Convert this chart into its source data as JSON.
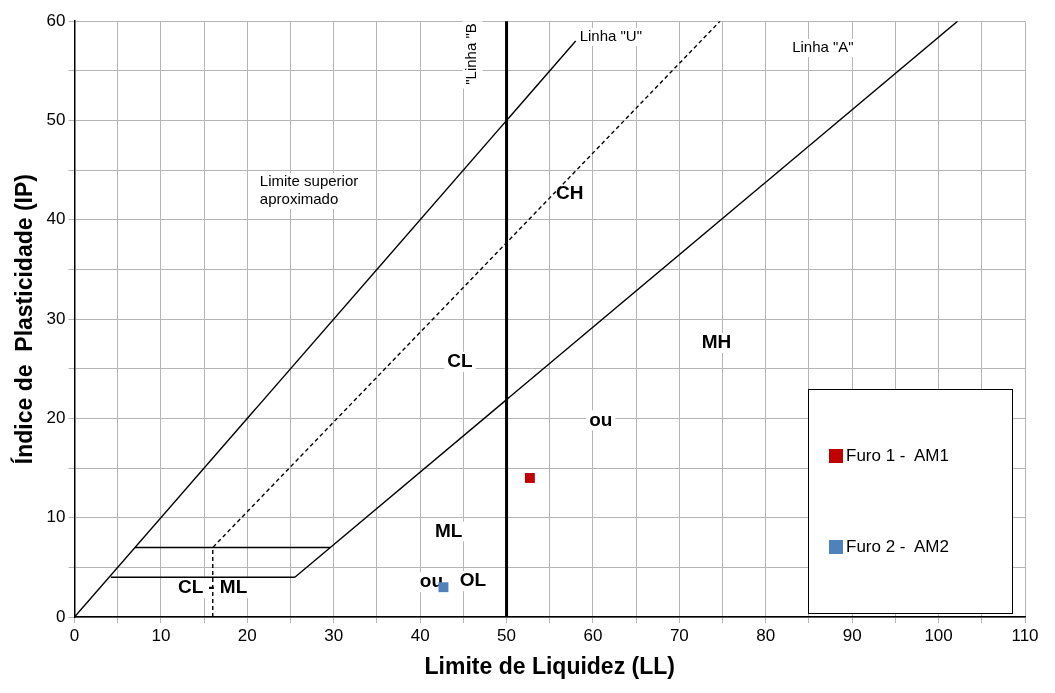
{
  "chart_data": {
    "type": "scatter",
    "xlabel": "Limite de Liquidez (LL)",
    "ylabel": "Índice de  Plasticidade (IP)",
    "xlim": [
      0,
      110
    ],
    "ylim": [
      0,
      60
    ],
    "xticks": [
      0,
      {
        "value": 5,
        "label": null
      },
      10,
      {
        "value": 15,
        "label": null
      },
      20,
      {
        "value": 25,
        "label": null
      },
      30,
      {
        "value": 35,
        "label": null
      },
      40,
      {
        "value": 45,
        "label": null
      },
      50,
      {
        "value": 55,
        "label": null
      },
      60,
      {
        "value": 65,
        "label": null
      },
      70,
      {
        "value": 75,
        "label": null
      },
      80,
      {
        "value": 85,
        "label": null
      },
      90,
      {
        "value": 95,
        "label": null
      },
      100,
      {
        "value": 105,
        "label": null
      },
      110
    ],
    "yticks": [
      0,
      {
        "value": 5,
        "label": null
      },
      10,
      {
        "value": 15,
        "label": null
      },
      20,
      {
        "value": 25,
        "label": null
      },
      30,
      {
        "value": 35,
        "label": null
      },
      40,
      {
        "value": 45,
        "label": null
      },
      50,
      {
        "value": 55,
        "label": null
      },
      60
    ],
    "grid": true,
    "legend": "bottom right",
    "series": [
      {
        "type": "line",
        "x": [
          0,
          58
        ],
        "values": [
          0,
          58
        ],
        "color": "#000000",
        "line_style": "solid",
        "marker": "none"
      },
      {
        "type": "line",
        "x": [
          16,
          16,
          74.7
        ],
        "values": [
          0,
          7,
          60
        ],
        "color": "#000000",
        "line_style": "dashed",
        "marker": "none"
      },
      {
        "type": "line",
        "x": [
          25.5,
          102.2
        ],
        "values": [
          4,
          60
        ],
        "color": "#000000",
        "line_style": "solid",
        "marker": "none"
      },
      {
        "type": "line",
        "x": [
          4.2,
          25.5
        ],
        "values": [
          4,
          4
        ],
        "color": "#000000",
        "line_style": "solid",
        "marker": "none"
      },
      {
        "type": "line",
        "x": [
          7,
          29.6
        ],
        "values": [
          7,
          7
        ],
        "color": "#000000",
        "line_style": "solid",
        "marker": "none"
      },
      {
        "name": "Furo 1 -  AM1",
        "x": [
          52.7
        ],
        "values": [
          14
        ],
        "color": "#c00000",
        "marker": "square"
      },
      {
        "name": "Furo 2 -  AM2",
        "x": [
          42.7
        ],
        "values": [
          3
        ],
        "color": "#4f81bd",
        "marker": "square"
      }
    ],
    "ref_lines": [
      {
        "axis": "x",
        "value": 50,
        "label": "\"Linha \"B",
        "color": "#000000"
      }
    ],
    "annotations": [
      {
        "text": "Linha \"U\"",
        "x": 58,
        "y": 58
      },
      "Linha \"A\"",
      "Limite superior aproximado",
      {
        "text": "CH",
        "x": 57.3,
        "y": 42.6
      },
      {
        "text": "CL",
        "x": 44.6,
        "y": 25.7
      },
      {
        "text": "MH",
        "x": 74.3,
        "y": 27.6
      },
      {
        "text": "ou",
        "x": 60.9,
        "y": 19.8
      },
      {
        "text": "ML",
        "x": 43.3,
        "y": 8.6
      },
      {
        "text": "ou",
        "x": 41.3,
        "y": 3.5
      },
      {
        "text": "OL",
        "x": 46.1,
        "y": 3.6
      },
      {
        "text": "CL - ML",
        "x": 16,
        "y": 2.9
      }
    ]
  }
}
